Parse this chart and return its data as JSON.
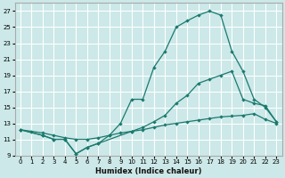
{
  "xlabel": "Humidex (Indice chaleur)",
  "bg_color": "#cce8e8",
  "line_color": "#1a7a6e",
  "grid_color": "#ffffff",
  "xlim": [
    -0.5,
    23.5
  ],
  "ylim": [
    9,
    28
  ],
  "xticks": [
    0,
    1,
    2,
    3,
    4,
    5,
    6,
    7,
    8,
    9,
    10,
    11,
    12,
    13,
    14,
    15,
    16,
    17,
    18,
    19,
    20,
    21,
    22,
    23
  ],
  "yticks": [
    9,
    11,
    13,
    15,
    17,
    19,
    21,
    23,
    25,
    27
  ],
  "line1_x": [
    0,
    1,
    2,
    3,
    4,
    5,
    6,
    7,
    8,
    9,
    10,
    11,
    12,
    13,
    14,
    15,
    16,
    17,
    18,
    19,
    20,
    21,
    22,
    23
  ],
  "line1_y": [
    12.2,
    12.0,
    11.8,
    11.5,
    11.2,
    11.0,
    11.0,
    11.2,
    11.5,
    11.8,
    12.0,
    12.2,
    12.5,
    12.8,
    13.0,
    13.2,
    13.4,
    13.6,
    13.8,
    13.9,
    14.0,
    14.2,
    13.5,
    13.0
  ],
  "line2_x": [
    0,
    2,
    3,
    4,
    5,
    6,
    7,
    8,
    9,
    10,
    11,
    12,
    13,
    14,
    15,
    16,
    17,
    18,
    19,
    20,
    21,
    22,
    23
  ],
  "line2_y": [
    12.2,
    11.5,
    11.0,
    11.0,
    9.2,
    10.0,
    10.5,
    11.5,
    13.0,
    16.0,
    16.0,
    20.0,
    22.0,
    25.0,
    25.8,
    26.5,
    27.0,
    26.5,
    22.0,
    19.5,
    16.0,
    15.0,
    13.2
  ],
  "line3_x": [
    0,
    2,
    3,
    4,
    5,
    6,
    7,
    10,
    11,
    12,
    13,
    14,
    15,
    16,
    17,
    18,
    19,
    20,
    21,
    22,
    23
  ],
  "line3_y": [
    12.2,
    11.5,
    11.0,
    11.0,
    9.2,
    10.0,
    10.5,
    12.0,
    12.5,
    13.2,
    14.0,
    15.5,
    16.5,
    18.0,
    18.5,
    19.0,
    19.5,
    16.0,
    15.5,
    15.2,
    13.2
  ]
}
